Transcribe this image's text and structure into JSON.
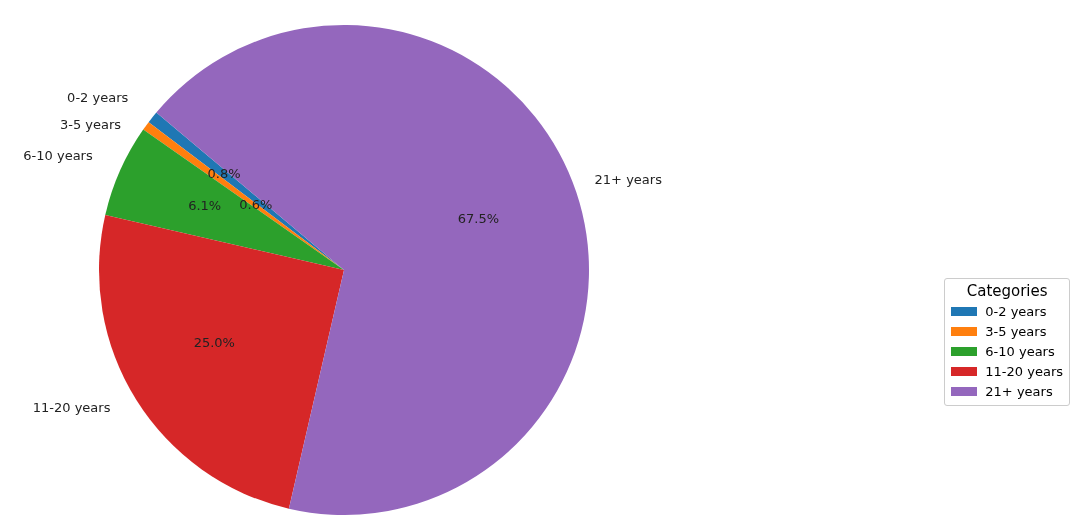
{
  "chart_data": {
    "type": "pie",
    "legend_title": "Categories",
    "categories": [
      "0-2 years",
      "3-5 years",
      "6-10 years",
      "11-20 years",
      "21+ years"
    ],
    "values": [
      0.8,
      0.6,
      6.1,
      25.0,
      67.5
    ],
    "colors": [
      "#1f77b4",
      "#ff7f0e",
      "#2ca02c",
      "#d62728",
      "#9467bd"
    ],
    "value_labels": [
      "0.8%",
      "0.6%",
      "6.1%",
      "25.0%",
      "67.5%"
    ],
    "legend": "right"
  }
}
